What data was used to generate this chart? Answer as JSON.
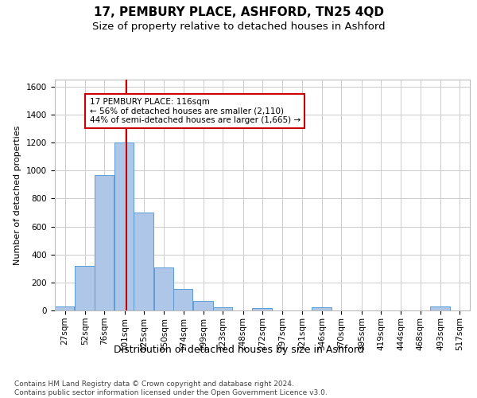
{
  "title": "17, PEMBURY PLACE, ASHFORD, TN25 4QD",
  "subtitle": "Size of property relative to detached houses in Ashford",
  "xlabel": "Distribution of detached houses by size in Ashford",
  "ylabel": "Number of detached properties",
  "footnote": "Contains HM Land Registry data © Crown copyright and database right 2024.\nContains public sector information licensed under the Open Government Licence v3.0.",
  "annotation_line1": "17 PEMBURY PLACE: 116sqm",
  "annotation_line2": "← 56% of detached houses are smaller (2,110)",
  "annotation_line3": "44% of semi-detached houses are larger (1,665) →",
  "property_size": 116,
  "bar_color": "#aec6e8",
  "bar_edge_color": "#5b9bd5",
  "vline_color": "#cc0000",
  "annotation_box_edge": "#cc0000",
  "annotation_box_bg": "#ffffff",
  "categories": [
    "27sqm",
    "52sqm",
    "76sqm",
    "101sqm",
    "125sqm",
    "150sqm",
    "174sqm",
    "199sqm",
    "223sqm",
    "248sqm",
    "272sqm",
    "297sqm",
    "321sqm",
    "346sqm",
    "370sqm",
    "395sqm",
    "419sqm",
    "444sqm",
    "468sqm",
    "493sqm",
    "517sqm"
  ],
  "bin_edges": [
    27,
    52,
    76,
    101,
    125,
    150,
    174,
    199,
    223,
    248,
    272,
    297,
    321,
    346,
    370,
    395,
    419,
    444,
    468,
    493,
    517
  ],
  "bin_width": 25,
  "values": [
    30,
    320,
    970,
    1200,
    700,
    310,
    155,
    70,
    25,
    0,
    15,
    0,
    0,
    20,
    0,
    0,
    0,
    0,
    0,
    30,
    0
  ],
  "ylim": [
    0,
    1650
  ],
  "yticks": [
    0,
    200,
    400,
    600,
    800,
    1000,
    1200,
    1400,
    1600
  ],
  "bg_color": "#ffffff",
  "grid_color": "#cccccc",
  "title_fontsize": 11,
  "subtitle_fontsize": 9.5,
  "xlabel_fontsize": 9,
  "ylabel_fontsize": 8,
  "tick_fontsize": 7.5,
  "annotation_fontsize": 7.5,
  "footnote_fontsize": 6.5
}
